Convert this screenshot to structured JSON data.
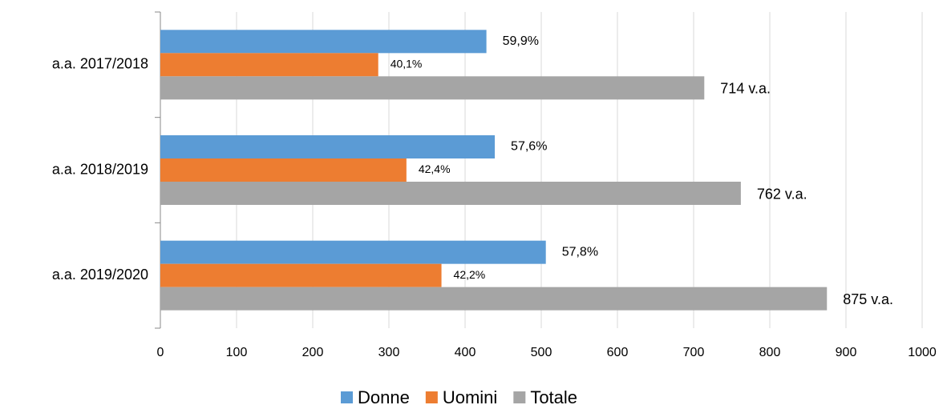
{
  "chart_data": {
    "type": "hbar",
    "categories": [
      "a.a. 2017/2018",
      "a.a. 2018/2019",
      "a.a. 2019/2020"
    ],
    "series": [
      {
        "name": "Donne",
        "color": "#5b9bd5",
        "values": [
          428,
          439,
          506
        ],
        "value_labels": [
          "59,9%",
          "57,6%",
          "57,8%"
        ]
      },
      {
        "name": "Uomini",
        "color": "#ed7d31",
        "values": [
          286,
          323,
          369
        ],
        "value_labels": [
          "40,1%",
          "42,4%",
          "42,2%"
        ]
      },
      {
        "name": "Totale",
        "color": "#a5a5a5",
        "values": [
          714,
          762,
          875
        ],
        "value_labels": [
          "714 v.a.",
          "762 v.a.",
          "875 v.a."
        ]
      }
    ],
    "xlim": [
      0,
      1000
    ],
    "xticks": [
      0,
      100,
      200,
      300,
      400,
      500,
      600,
      700,
      800,
      900,
      1000
    ],
    "grid": true,
    "legend": "bottom"
  }
}
